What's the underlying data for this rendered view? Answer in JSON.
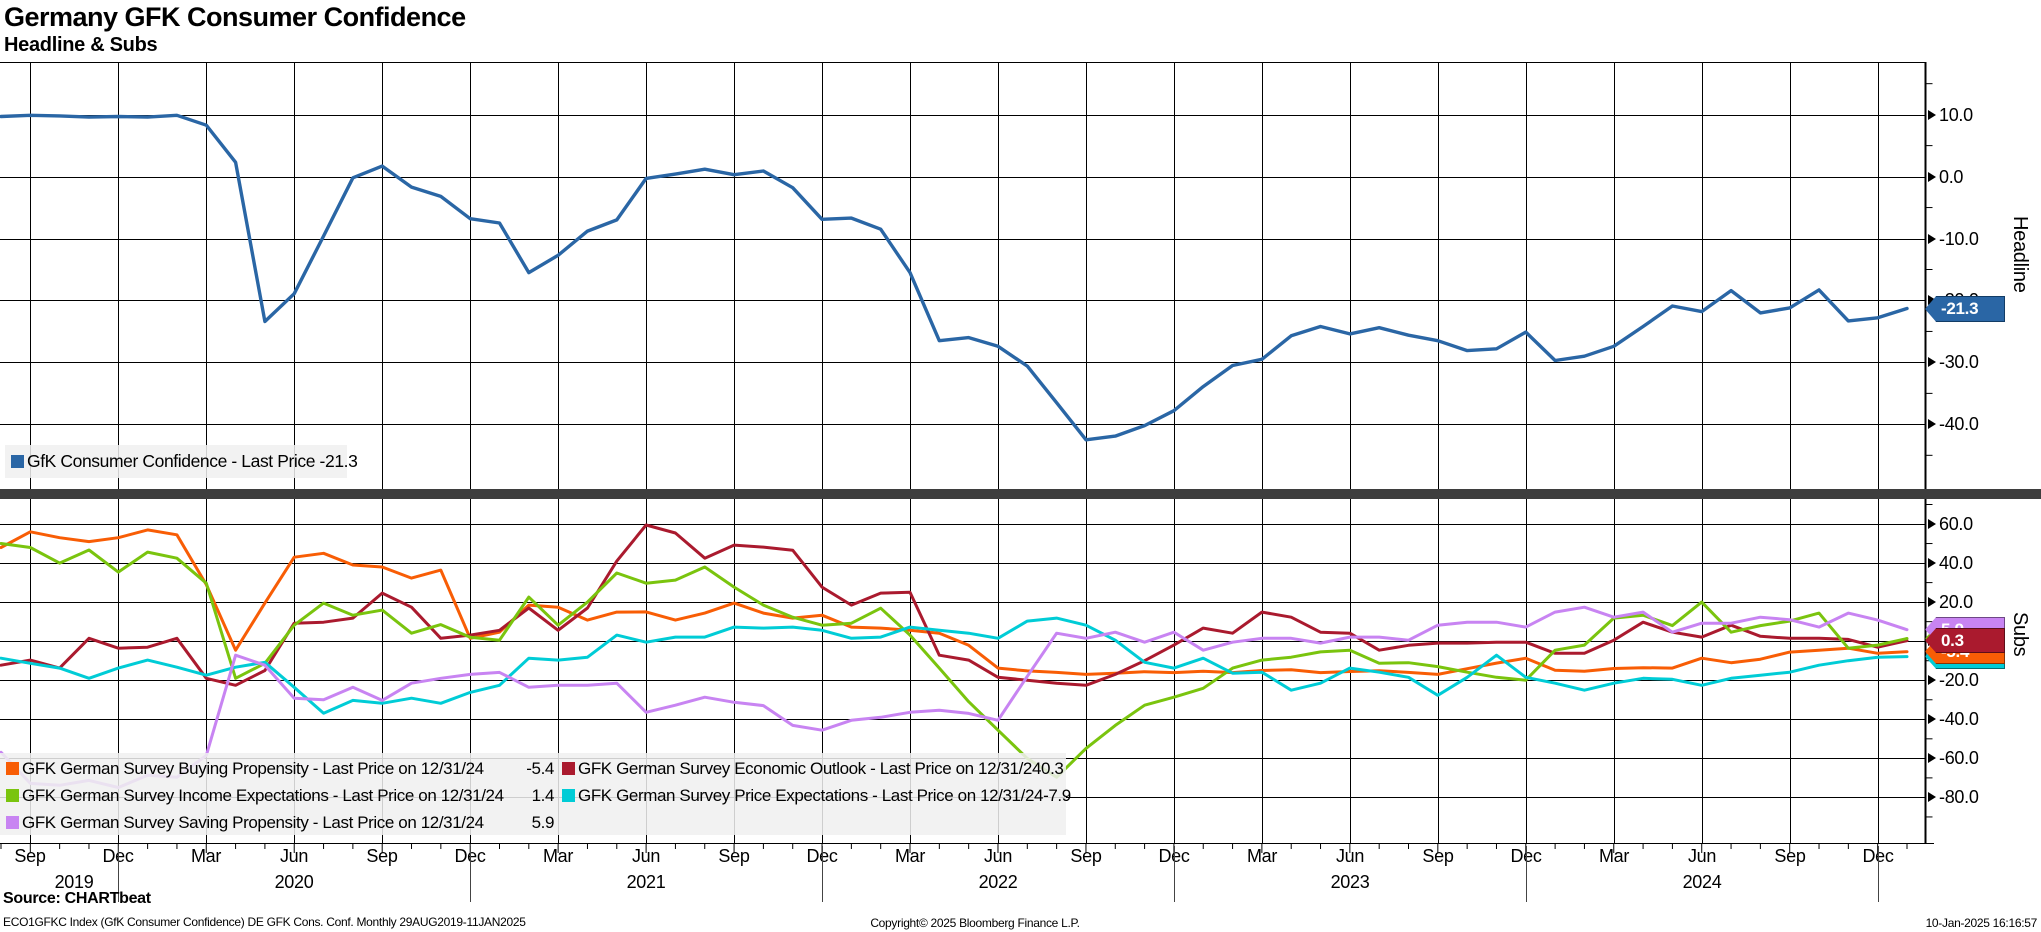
{
  "header": {
    "title": "Germany GFK Consumer Confidence",
    "subtitle": "Headline & Subs"
  },
  "colors": {
    "headline_blue": "#2a66a5",
    "buying_orange": "#f85d05",
    "economic_red": "#aa1a2e",
    "income_green": "#7ac40e",
    "price_cyan": "#00ccd6",
    "saving_purple": "#c884f2",
    "grid": "#000000",
    "separator": "#3e3e3e",
    "legend_bg": "#f0f0f0"
  },
  "legend_top": {
    "label": "GfK Consumer Confidence",
    "last_label": "Last Price",
    "value": "-21.3"
  },
  "legend_subs": [
    {
      "label": "GFK German Survey Buying Propensity",
      "last_label": "Last Price on 12/31/24",
      "value": "-5.4",
      "color": "#f85d05",
      "col": 1,
      "row": 1
    },
    {
      "label": "GFK German Survey Economic Outlook",
      "last_label": "Last Price on 12/31/24",
      "value": "0.3",
      "color": "#aa1a2e",
      "col": 2,
      "row": 1
    },
    {
      "label": "GFK German Survey Income Expectations",
      "last_label": "Last Price on 12/31/24",
      "value": "1.4",
      "color": "#7ac40e",
      "col": 1,
      "row": 2
    },
    {
      "label": "GFK German Survey Price Expectations",
      "last_label": "Last Price on 12/31/24",
      "value": "-7.9",
      "color": "#00ccd6",
      "col": 2,
      "row": 2
    },
    {
      "label": "GFK German Survey Saving Propensity",
      "last_label": "Last Price on 12/31/24",
      "value": "5.9",
      "color": "#c884f2",
      "col": 1,
      "row": 3
    }
  ],
  "chart_data": {
    "type": "line",
    "x_start": "2019-08",
    "x_end": "2025-01",
    "freq": "monthly",
    "x_axis": {
      "tick_months": [
        "Sep",
        "Dec",
        "Mar",
        "Jun",
        "Sep",
        "Dec",
        "Mar",
        "Jun",
        "Sep",
        "Dec",
        "Mar",
        "Jun",
        "Sep",
        "Dec",
        "Mar",
        "Jun",
        "Sep",
        "Dec",
        "Mar",
        "Jun",
        "Sep",
        "Dec"
      ],
      "years": [
        "2019",
        "2020",
        "2021",
        "2022",
        "2023",
        "2024"
      ]
    },
    "panels": [
      {
        "id": "headline",
        "axis_label": "Headline",
        "ylim": [
          -50.6,
          18.5
        ],
        "yticks": [
          10,
          0,
          -10,
          -20,
          -30,
          -40
        ],
        "series": [
          {
            "name": "GfK Consumer Confidence",
            "color": "#2a66a5",
            "width": 3.4,
            "last_price": "-21.3",
            "values": [
              9.7,
              9.9,
              9.8,
              9.6,
              9.7,
              9.6,
              9.9,
              8.3,
              2.3,
              -23.4,
              -18.9,
              -9.6,
              -0.2,
              1.7,
              -1.7,
              -3.2,
              -6.8,
              -7.5,
              -15.5,
              -12.7,
              -8.8,
              -7.0,
              -0.3,
              0.4,
              1.2,
              0.3,
              0.9,
              -1.8,
              -6.9,
              -6.7,
              -8.5,
              -15.5,
              -26.5,
              -26.0,
              -27.4,
              -30.6,
              -36.5,
              -42.5,
              -41.9,
              -40.2,
              -37.8,
              -33.9,
              -30.5,
              -29.5,
              -25.7,
              -24.2,
              -25.4,
              -24.4,
              -25.6,
              -26.5,
              -28.1,
              -27.8,
              -25.1,
              -29.7,
              -29.0,
              -27.4,
              -24.2,
              -20.9,
              -21.8,
              -18.4,
              -22.0,
              -21.2,
              -18.3,
              -23.3,
              -22.8,
              -21.3
            ]
          }
        ]
      },
      {
        "id": "subs",
        "axis_label": "Subs",
        "ylim": [
          -103.6,
          72.3
        ],
        "yticks": [
          60,
          40,
          20,
          0,
          -20,
          -40,
          -60,
          -80
        ],
        "badge_order": [
          2,
          3,
          4,
          0,
          1
        ],
        "series": [
          {
            "name": "GFK German Survey Buying Propensity",
            "color": "#f85d05",
            "width": 3,
            "last_price": "-5.4",
            "values": [
              48,
              56,
              53,
              51,
              53,
              57,
              54.5,
              29,
              -4.6,
              19.5,
              43,
              45,
              39,
              38,
              32.3,
              36.4,
              1.5,
              4.6,
              18.5,
              17.4,
              10.8,
              14.9,
              15.0,
              10.8,
              14.4,
              19.5,
              14.4,
              11.8,
              13.3,
              7.2,
              6.7,
              5.6,
              4.1,
              -2.1,
              -13.8,
              -15.2,
              -16.0,
              -17.0,
              -16.4,
              -15.6,
              -16.1,
              -15.4,
              -16.1,
              -15.0,
              -14.6,
              -16.1,
              -15.5,
              -15.1,
              -16.0,
              -17.0,
              -14.1,
              -11.2,
              -8.7,
              -14.9,
              -15.4,
              -14.0,
              -13.6,
              -13.8,
              -8.7,
              -11.0,
              -9.2,
              -5.6,
              -4.6,
              -3.6,
              -6.2,
              -5.4
            ]
          },
          {
            "name": "GFK German Survey Economic Outlook",
            "color": "#aa1a2e",
            "width": 3,
            "last_price": "0.3",
            "values": [
              -12.3,
              -9.7,
              -13.8,
              1.5,
              -3.6,
              -3.1,
              1.5,
              -19.0,
              -22.6,
              -15.0,
              9.2,
              9.7,
              11.8,
              24.6,
              17.4,
              1.5,
              3.1,
              5.6,
              17.0,
              5.6,
              17.0,
              41.0,
              59.5,
              55.4,
              42.5,
              49.2,
              48.2,
              46.6,
              27.7,
              18.5,
              24.6,
              25.1,
              -7.2,
              -9.7,
              -18.5,
              -20.0,
              -21.5,
              -22.6,
              -17.0,
              -10.0,
              -2.0,
              6.7,
              4.1,
              14.9,
              12.3,
              4.6,
              4.1,
              -4.6,
              -2.1,
              -1.0,
              -1.0,
              -0.5,
              -0.5,
              -6.2,
              -6.2,
              0.5,
              9.7,
              4.6,
              2.1,
              8.2,
              2.5,
              1.5,
              1.5,
              0.9,
              -3.1,
              0.3
            ]
          },
          {
            "name": "GFK German Survey Income Expectations",
            "color": "#7ac40e",
            "width": 3,
            "last_price": "1.4",
            "values": [
              50,
              48,
              40,
              46.7,
              35.4,
              45.6,
              42.5,
              29.7,
              -19.0,
              -11.3,
              8.2,
              19.5,
              13.3,
              15.9,
              4.1,
              8.5,
              2.0,
              0.5,
              22.6,
              8.2,
              20.0,
              34.9,
              29.7,
              31.3,
              38.0,
              27.7,
              18.5,
              12.3,
              8.2,
              9.2,
              16.9,
              3.1,
              -13.8,
              -31.0,
              -45.6,
              -60.0,
              -69.7,
              -54.9,
              -43.1,
              -32.8,
              -28.7,
              -24.1,
              -13.8,
              -9.7,
              -8.2,
              -5.5,
              -4.6,
              -11.3,
              -11.0,
              -13.0,
              -15.9,
              -18.5,
              -20.0,
              -4.6,
              -2.0,
              11.8,
              13.3,
              8.0,
              20.0,
              4.6,
              8.0,
              10.3,
              14.4,
              -3.6,
              -2.0,
              1.4
            ]
          },
          {
            "name": "GFK German Survey Price Expectations",
            "color": "#00ccd6",
            "width": 3,
            "last_price": "-7.9",
            "values": [
              -8.7,
              -11.3,
              -13.8,
              -19.0,
              -13.8,
              -9.7,
              -13.3,
              -17.4,
              -13.3,
              -10.8,
              -23.6,
              -36.9,
              -30.3,
              -31.8,
              -29.2,
              -31.8,
              -26.2,
              -22.6,
              -8.7,
              -9.7,
              -8.2,
              3.1,
              -0.5,
              2.1,
              2.1,
              7.2,
              6.7,
              7.2,
              5.6,
              1.5,
              2.1,
              7.2,
              5.6,
              4.1,
              1.5,
              10.3,
              11.8,
              8.2,
              0.5,
              -10.8,
              -13.8,
              -8.7,
              -16.4,
              -15.9,
              -25.1,
              -21.5,
              -13.8,
              -15.9,
              -18.5,
              -27.7,
              -18.5,
              -7.2,
              -18.5,
              -21.5,
              -25.1,
              -21.5,
              -19.0,
              -19.5,
              -22.6,
              -19.0,
              -17.4,
              -15.9,
              -12.3,
              -10.0,
              -8.2,
              -7.9
            ]
          },
          {
            "name": "GFK German Survey Saving Propensity",
            "color": "#c884f2",
            "width": 3,
            "last_price": "5.9",
            "values": [
              -56.9,
              -72.8,
              -73.8,
              -71.3,
              -74.9,
              -68.7,
              -69.7,
              -58.5,
              -7.2,
              -12.3,
              -29.2,
              -30.0,
              -23.6,
              -30.3,
              -21.5,
              -19.0,
              -17.0,
              -16.0,
              -23.6,
              -22.6,
              -22.6,
              -21.5,
              -36.4,
              -32.8,
              -28.7,
              -31.3,
              -33.0,
              -43.1,
              -45.6,
              -40.5,
              -39.0,
              -36.4,
              -35.4,
              -37.0,
              -40.5,
              -18.0,
              4.1,
              1.5,
              4.6,
              -0.5,
              4.6,
              -4.6,
              -0.5,
              1.5,
              1.5,
              -1.0,
              2.1,
              2.1,
              0.5,
              8.2,
              9.7,
              9.7,
              7.2,
              14.9,
              17.4,
              12.3,
              14.9,
              4.6,
              9.2,
              9.2,
              12.3,
              11.0,
              7.2,
              14.4,
              10.8,
              5.9
            ]
          }
        ]
      }
    ]
  },
  "footer": {
    "source": "Source: CHARTbeat",
    "description": "ECO1GFKC Index (GfK Consumer Confidence) DE GFK Cons. Conf.  Monthly 29AUG2019-11JAN2025",
    "copyright": "Copyright© 2025 Bloomberg Finance L.P.",
    "timestamp": "10-Jan-2025 16:16:57"
  }
}
